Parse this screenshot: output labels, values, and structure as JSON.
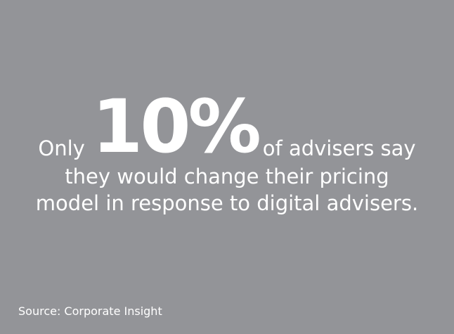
{
  "background_color": "#939498",
  "text_color": "#ffffff",
  "stat": {
    "prefix": "Only",
    "value": "10%",
    "suffix": "of advisers say",
    "line2": "they would change their pricing",
    "line3": "model in response to digital advisers."
  },
  "source": "Source: Corporate Insight"
}
